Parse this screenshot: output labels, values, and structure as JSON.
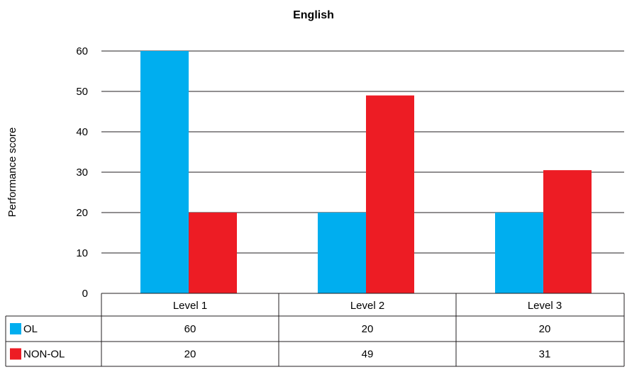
{
  "chart_data": {
    "type": "bar",
    "title": "English",
    "xlabel": "",
    "ylabel": "Performance score",
    "ylim": [
      0,
      60
    ],
    "yticks": [
      0,
      10,
      20,
      30,
      40,
      50,
      60
    ],
    "categories": [
      "Level 1",
      "Level 2",
      "Level 3"
    ],
    "series": [
      {
        "name": "OL",
        "values": [
          60,
          20,
          20
        ],
        "color": "#00aeef",
        "table_values": [
          "60",
          "20",
          "20"
        ]
      },
      {
        "name": "NON-OL",
        "values": [
          20,
          49,
          30.5
        ],
        "color": "#ed1c24",
        "table_values": [
          "20",
          "49",
          "31"
        ]
      }
    ],
    "grid": true,
    "legend": "data-table-left"
  }
}
